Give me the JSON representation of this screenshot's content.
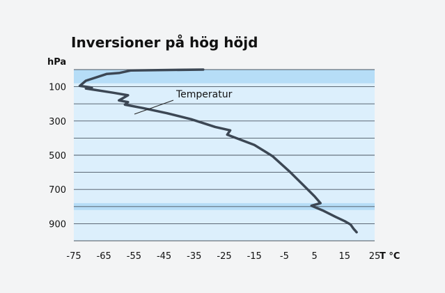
{
  "chart_data": {
    "type": "line",
    "title": "Inversioner på hög höjd",
    "ylabel": "hPa",
    "xlabel": "T °C",
    "xlim": [
      -75,
      25
    ],
    "ylim": [
      0,
      1000
    ],
    "x_ticks": [
      -75,
      -65,
      -55,
      -45,
      -35,
      -25,
      -15,
      -5,
      5,
      15,
      25
    ],
    "x_tick_labels": [
      "-75",
      "-65",
      "-55",
      "-45",
      "-35",
      "-25",
      "-15",
      "-5",
      "5",
      "15",
      "25"
    ],
    "y_ticks": [
      100,
      300,
      500,
      700,
      900
    ],
    "y_tick_labels": [
      "100",
      "300",
      "500",
      "700",
      "900"
    ],
    "grid_levels": [
      0,
      100,
      200,
      300,
      400,
      500,
      600,
      700,
      800,
      900,
      1000
    ],
    "highlight_bands": [
      [
        0,
        80
      ],
      [
        780,
        820
      ]
    ],
    "annotation": "Temperatur",
    "colors": {
      "background": "#dceffc",
      "band": "#b6ddf7",
      "grid": "#4a5560",
      "line": "#3c4754",
      "text": "#111111"
    },
    "series": [
      {
        "x": [
          -32,
          -56,
          -60,
          -64,
          -71,
          -73,
          -69,
          -71,
          -62,
          -57,
          -60,
          -57,
          -58,
          -52,
          -44,
          -36,
          -28,
          -23,
          -24,
          -15,
          -9,
          -3,
          1,
          5,
          7,
          4,
          8,
          12,
          15,
          17,
          18,
          19
        ],
        "y": [
          0,
          5,
          20,
          25,
          65,
          95,
          105,
          110,
          135,
          150,
          180,
          190,
          205,
          225,
          255,
          290,
          335,
          355,
          380,
          440,
          505,
          600,
          670,
          740,
          780,
          795,
          825,
          860,
          885,
          905,
          930,
          950
        ]
      }
    ]
  }
}
